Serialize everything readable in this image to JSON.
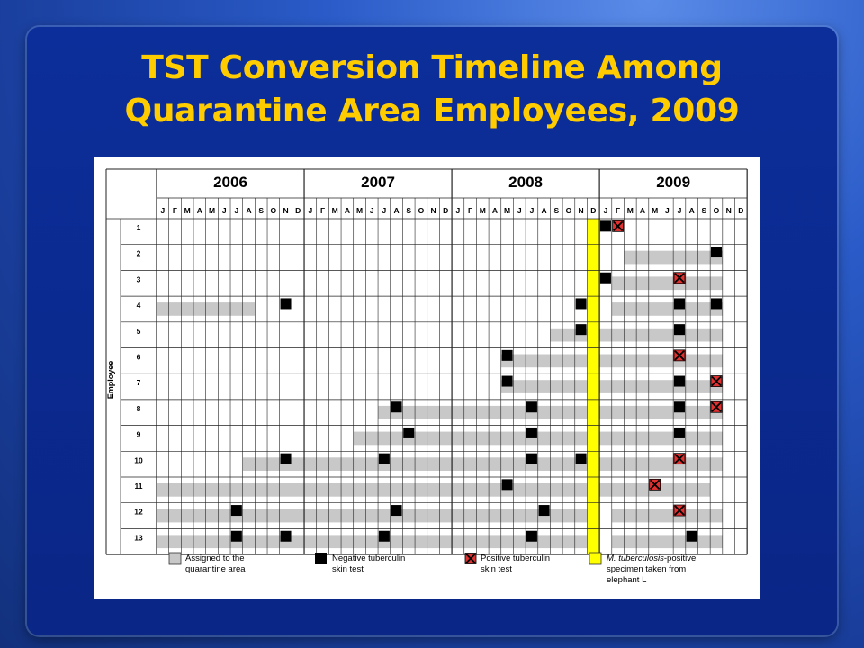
{
  "slide": {
    "title_line1": "TST Conversion Timeline Among",
    "title_line2": "Quarantine Area Employees, 2009"
  },
  "colors": {
    "title": "#ffcc00",
    "assigned": "#c8c8c8",
    "negative": "#000000",
    "positive_fill": "#e03030",
    "cross": "#000000",
    "specimen": "#ffff00"
  },
  "chart_data": {
    "type": "table",
    "years": [
      "2006",
      "2007",
      "2008",
      "2009"
    ],
    "months": [
      "J",
      "F",
      "M",
      "A",
      "M",
      "J",
      "J",
      "A",
      "S",
      "O",
      "N",
      "D"
    ],
    "ylabel": "Employee",
    "employees": [
      "1",
      "2",
      "3",
      "4",
      "5",
      "6",
      "7",
      "8",
      "9",
      "10",
      "11",
      "12",
      "13"
    ],
    "specimen_month": "2008-12",
    "assigned": [
      [],
      [
        [
          "2009-03",
          "2009-10"
        ]
      ],
      [
        [
          "2009-02",
          "2009-10"
        ]
      ],
      [
        [
          "2006-01",
          "2006-08"
        ],
        [
          "2009-02",
          "2009-10"
        ]
      ],
      [
        [
          "2008-09",
          "2009-10"
        ]
      ],
      [
        [
          "2008-05",
          "2009-10"
        ]
      ],
      [
        [
          "2008-05",
          "2009-10"
        ]
      ],
      [
        [
          "2007-07",
          "2009-10"
        ]
      ],
      [
        [
          "2007-05",
          "2009-10"
        ]
      ],
      [
        [
          "2006-08",
          "2009-10"
        ]
      ],
      [
        [
          "2006-01",
          "2009-09"
        ]
      ],
      [
        [
          "2006-01",
          "2008-11"
        ],
        [
          "2009-02",
          "2009-10"
        ]
      ],
      [
        [
          "2006-01",
          "2008-11"
        ],
        [
          "2009-02",
          "2009-10"
        ]
      ]
    ],
    "negative_tests": [
      [
        "2009-01"
      ],
      [
        "2009-10"
      ],
      [
        "2009-01"
      ],
      [
        "2006-11",
        "2008-11",
        "2009-07",
        "2009-10"
      ],
      [
        "2008-11",
        "2009-07"
      ],
      [
        "2008-05"
      ],
      [
        "2008-05",
        "2009-07"
      ],
      [
        "2007-08",
        "2008-07",
        "2009-07"
      ],
      [
        "2007-09",
        "2008-07",
        "2009-07"
      ],
      [
        "2006-11",
        "2007-07",
        "2008-07",
        "2008-11"
      ],
      [
        "2008-05"
      ],
      [
        "2006-07",
        "2007-08",
        "2008-08"
      ],
      [
        "2006-07",
        "2006-11",
        "2007-07",
        "2008-07",
        "2009-08"
      ]
    ],
    "positive_tests": [
      [
        "2009-02"
      ],
      [],
      [
        "2009-07"
      ],
      [],
      [],
      [
        "2009-07"
      ],
      [
        "2009-10"
      ],
      [
        "2009-10"
      ],
      [],
      [
        "2009-07"
      ],
      [
        "2009-05"
      ],
      [
        "2009-07"
      ],
      []
    ],
    "legend": {
      "assigned_line1": "Assigned to the",
      "assigned_line2": "quarantine area",
      "negative_line1": "Negative tuberculin",
      "negative_line2": "skin test",
      "positive_line1": "Positive tuberculin",
      "positive_line2": "skin test",
      "specimen_italic": "M. tuberculosis",
      "specimen_rest": "-positive",
      "specimen_line2": "specimen taken from",
      "specimen_line3": "elephant L"
    }
  }
}
